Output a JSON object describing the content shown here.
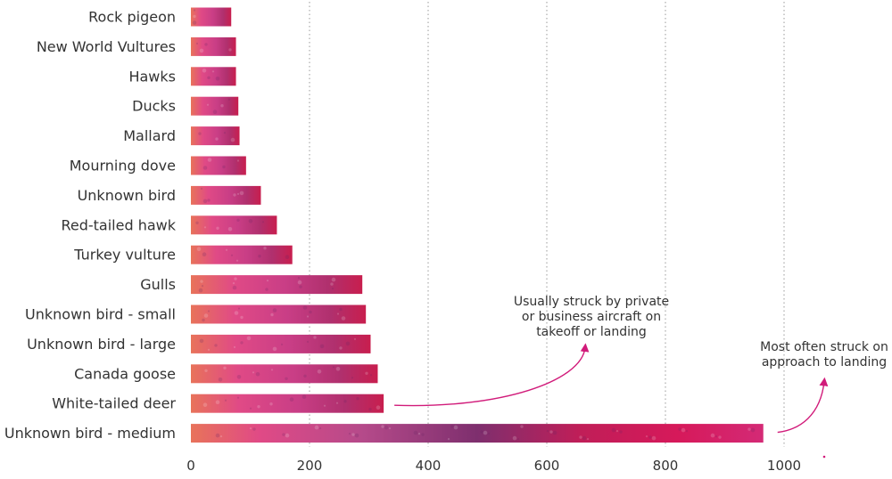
{
  "chart_data": {
    "type": "bar",
    "orientation": "horizontal",
    "categories": [
      "Rock pigeon",
      "New World Vultures",
      "Hawks",
      "Ducks",
      "Mallard",
      "Mourning dove",
      "Unknown bird",
      "Red-tailed hawk",
      "Turkey vulture",
      "Gulls",
      "Unknown bird - small",
      "Unknown bird - large",
      "Canada goose",
      "White-tailed deer",
      "Unknown bird - medium"
    ],
    "values": [
      68,
      76,
      76,
      80,
      82,
      93,
      118,
      145,
      171,
      289,
      295,
      303,
      315,
      325,
      965
    ],
    "xlim": [
      0,
      1000
    ],
    "xticks": [
      0,
      200,
      400,
      600,
      800,
      1000
    ],
    "xtick_labels": [
      "0",
      "200",
      "400",
      "600",
      "800",
      "1000"
    ],
    "grid": "vertical-dotted",
    "colors": {
      "bar_start": "#e8735a",
      "bar_mid": "#d63a7f",
      "bar_end": "#c81e4e",
      "bar_dark": "#7e2f6e",
      "accent": "#d11b7a"
    },
    "annotations": [
      {
        "lines": [
          "Usually struck by private",
          "or business aircraft on",
          "takeoff or landing"
        ],
        "target_category": "White-tailed deer"
      },
      {
        "lines": [
          "Most often struck on",
          "approach to landing"
        ],
        "target_category": "Unknown bird - medium"
      }
    ]
  }
}
